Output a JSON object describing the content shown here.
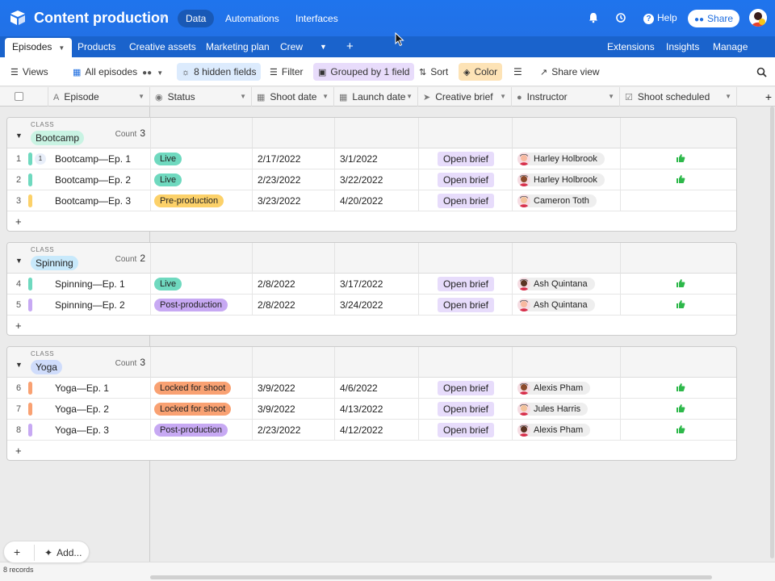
{
  "app": {
    "title": "Content production",
    "nav": [
      "Data",
      "Automations",
      "Interfaces"
    ],
    "active_nav": "Data",
    "help_label": "Help",
    "share_label": "Share"
  },
  "tabs": {
    "items": [
      "Episodes",
      "Products",
      "Creative assets",
      "Marketing plan",
      "Crew"
    ],
    "active": "Episodes",
    "right": [
      "Extensions",
      "Insights",
      "Manage Fields"
    ]
  },
  "toolbar": {
    "views": "Views",
    "view_name": "All episodes",
    "hidden_fields": "8 hidden fields",
    "filter": "Filter",
    "grouped": "Grouped by 1 field",
    "sort": "Sort",
    "color": "Color",
    "share_view": "Share view"
  },
  "columns": [
    "Episode",
    "Status",
    "Shoot date",
    "Launch date",
    "Creative brief",
    "Instructor",
    "Shoot scheduled"
  ],
  "colors": {
    "live": "#6fd9bf",
    "pre_production": "#fcd169",
    "post_production": "#c7a9f3",
    "locked": "#f9a172",
    "brief": "#e7dcfb",
    "thumb": "#2db84a",
    "topbar": "#1f74ed"
  },
  "groups": [
    {
      "class_label": "CLASS",
      "name": "Bootcamp",
      "pill_color": "#c9f3e3",
      "count_label": "Count",
      "count": "3",
      "rows": [
        {
          "num": "1",
          "bar": "#6fd9bf",
          "comments": "1",
          "episode": "Bootcamp—Ep. 1",
          "status": "Live",
          "status_color": "#6fd9bf",
          "shoot": "2/17/2022",
          "launch": "3/1/2022",
          "brief": "Open brief",
          "instructor": "Harley Holbrook",
          "scheduled": true
        },
        {
          "num": "2",
          "bar": "#6fd9bf",
          "episode": "Bootcamp—Ep. 2",
          "status": "Live",
          "status_color": "#6fd9bf",
          "shoot": "2/23/2022",
          "launch": "3/22/2022",
          "brief": "Open brief",
          "instructor": "Harley Holbrook",
          "scheduled": true
        },
        {
          "num": "3",
          "bar": "#fcd169",
          "episode": "Bootcamp—Ep. 3",
          "status": "Pre-production",
          "status_color": "#fcd169",
          "shoot": "3/23/2022",
          "launch": "4/20/2022",
          "brief": "Open brief",
          "instructor": "Cameron Toth",
          "scheduled": false
        }
      ]
    },
    {
      "class_label": "CLASS",
      "name": "Spinning",
      "pill_color": "#c8e9fb",
      "count_label": "Count",
      "count": "2",
      "rows": [
        {
          "num": "4",
          "bar": "#6fd9bf",
          "episode": "Spinning—Ep. 1",
          "status": "Live",
          "status_color": "#6fd9bf",
          "shoot": "2/8/2022",
          "launch": "3/17/2022",
          "brief": "Open brief",
          "instructor": "Ash Quintana",
          "scheduled": true
        },
        {
          "num": "5",
          "bar": "#c7a9f3",
          "episode": "Spinning—Ep. 2",
          "status": "Post-production",
          "status_color": "#c7a9f3",
          "shoot": "2/8/2022",
          "launch": "3/24/2022",
          "brief": "Open brief",
          "instructor": "Ash Quintana",
          "scheduled": true
        }
      ]
    },
    {
      "class_label": "CLASS",
      "name": "Yoga",
      "pill_color": "#cfdcfb",
      "count_label": "Count",
      "count": "3",
      "rows": [
        {
          "num": "6",
          "bar": "#f9a172",
          "episode": "Yoga—Ep. 1",
          "status": "Locked for shoot",
          "status_color": "#f9a172",
          "shoot": "3/9/2022",
          "launch": "4/6/2022",
          "brief": "Open brief",
          "instructor": "Alexis Pham",
          "scheduled": true
        },
        {
          "num": "7",
          "bar": "#f9a172",
          "episode": "Yoga—Ep. 2",
          "status": "Locked for shoot",
          "status_color": "#f9a172",
          "shoot": "3/9/2022",
          "launch": "4/13/2022",
          "brief": "Open brief",
          "instructor": "Jules Harris",
          "scheduled": true
        },
        {
          "num": "8",
          "bar": "#c7a9f3",
          "episode": "Yoga—Ep. 3",
          "status": "Post-production",
          "status_color": "#c7a9f3",
          "shoot": "2/23/2022",
          "launch": "4/12/2022",
          "brief": "Open brief",
          "instructor": "Alexis Pham",
          "scheduled": true
        }
      ]
    }
  ],
  "footer": {
    "records": "8 records",
    "add_label": "Add..."
  },
  "icons": [
    "cube-logo-icon",
    "bell-icon",
    "history-icon",
    "help-icon",
    "people-icon",
    "grid-view-icon",
    "eye-slash-icon",
    "filter-icon",
    "group-icon",
    "sort-icon",
    "paint-bucket-icon",
    "row-height-icon",
    "share-view-icon",
    "search-icon",
    "thumbs-up-icon",
    "plus-icon"
  ]
}
